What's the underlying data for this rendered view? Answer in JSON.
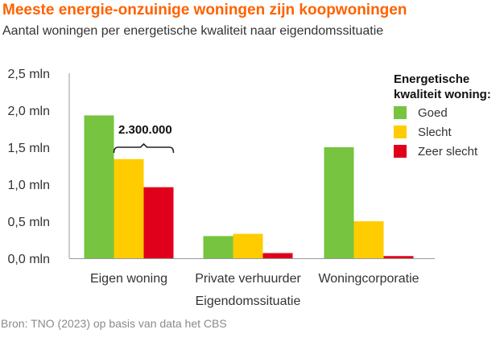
{
  "title": "Meeste energie-onzuinige woningen zijn koopwoningen",
  "subtitle": "Aantal woningen per energetische kwaliteit naar eigendomssituatie",
  "source": "Bron: TNO (2023) op basis van data het CBS",
  "chart_data": {
    "type": "bar",
    "title": "Meeste energie-onzuinige woningen zijn koopwoningen",
    "subtitle": "Aantal woningen per energetische kwaliteit naar eigendomssituatie",
    "xlabel": "Eigendomssituatie",
    "ylabel": "",
    "ylim": [
      0,
      2.5
    ],
    "yticks": [
      0,
      0.5,
      1.0,
      1.5,
      2.0,
      2.5
    ],
    "ytick_labels": [
      "0,0 mln",
      "0,5 mln",
      "1,0 mln",
      "1,5 mln",
      "2,0 mln",
      "2,5 mln"
    ],
    "categories": [
      "Eigen woning",
      "Private verhuurder",
      "Woningcorporatie"
    ],
    "legend_title": "Energetische kwaliteit woning:",
    "legend_placement": "top-right",
    "series": [
      {
        "name": "Goed",
        "color": "#76c43f",
        "values": [
          1.93,
          0.3,
          1.5
        ]
      },
      {
        "name": "Slecht",
        "color": "#ffcc00",
        "values": [
          1.34,
          0.33,
          0.5
        ]
      },
      {
        "name": "Zeer slecht",
        "color": "#e0001b",
        "values": [
          0.96,
          0.07,
          0.03
        ]
      }
    ],
    "annotations": [
      {
        "text": "2.300.000",
        "category": "Eigen woning",
        "spans_series": [
          "Slecht",
          "Zeer slecht"
        ]
      }
    ]
  }
}
